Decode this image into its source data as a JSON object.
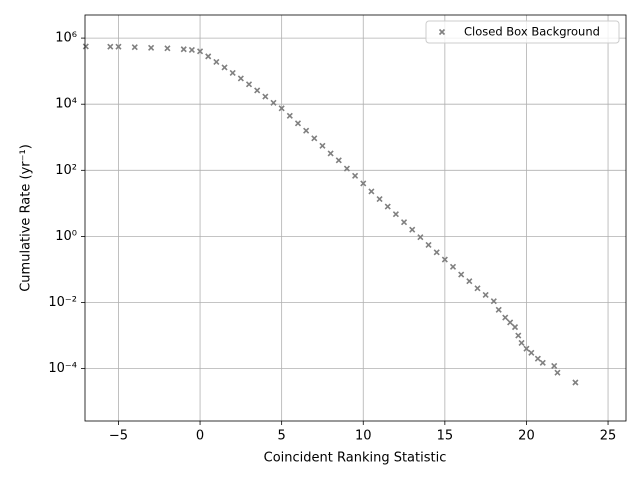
{
  "chart_data": {
    "type": "scatter",
    "xlabel": "Coincident Ranking Statistic",
    "ylabel": "Cumulative Rate (yr⁻¹)",
    "yscale": "log",
    "grid": true,
    "legend": "upper right",
    "xlim": [
      -7.05,
      26.1
    ],
    "ylim": [
      2.6e-06,
      5000000
    ],
    "xticks": [
      {
        "value": -5,
        "label": "−5"
      },
      0,
      5,
      10,
      15,
      20,
      25
    ],
    "yticks": [
      {
        "value": 0.0001,
        "label": "10⁻⁴"
      },
      {
        "value": 0.01,
        "label": "10⁻²"
      },
      {
        "value": 1,
        "label": "10⁰"
      },
      {
        "value": 100,
        "label": "10²"
      },
      {
        "value": 10000,
        "label": "10⁴"
      },
      {
        "value": 1000000,
        "label": "10⁶"
      }
    ],
    "series": [
      {
        "name": "Closed Box Background",
        "color": "#808080",
        "x": [
          -7,
          -5.5,
          -5,
          -4,
          -3,
          -2,
          -1,
          -0.5,
          0,
          0.5,
          1,
          1.5,
          2,
          2.5,
          3,
          3.5,
          4,
          4.5,
          5,
          5.5,
          6,
          6.5,
          7,
          7.5,
          8,
          8.5,
          9,
          9.5,
          10,
          10.5,
          11,
          11.5,
          12,
          12.5,
          13,
          13.5,
          14,
          14.5,
          15,
          15.5,
          16,
          16.5,
          17,
          17.5,
          18,
          18.3,
          18.7,
          19,
          19.3,
          19.5,
          19.7,
          20,
          20.3,
          20.7,
          21,
          21.7,
          21.9,
          23
        ],
        "values": [
          560000,
          550000,
          550000,
          530000,
          510000,
          490000,
          460000,
          440000,
          400000,
          280000,
          190000,
          130000,
          88000,
          60000,
          40000,
          26000,
          17000,
          11000,
          7500,
          4460,
          2650,
          1580,
          930,
          550,
          325,
          200,
          113,
          68,
          40,
          23,
          13.5,
          8,
          4.7,
          2.7,
          1.6,
          0.95,
          0.55,
          0.33,
          0.2,
          0.12,
          0.07,
          0.044,
          0.027,
          0.017,
          0.011,
          0.006,
          0.0035,
          0.0025,
          0.0018,
          0.001,
          0.0006,
          0.0004,
          0.0003,
          0.0002,
          0.00015,
          0.00012,
          7.5e-05,
          3.8e-05
        ]
      }
    ]
  }
}
